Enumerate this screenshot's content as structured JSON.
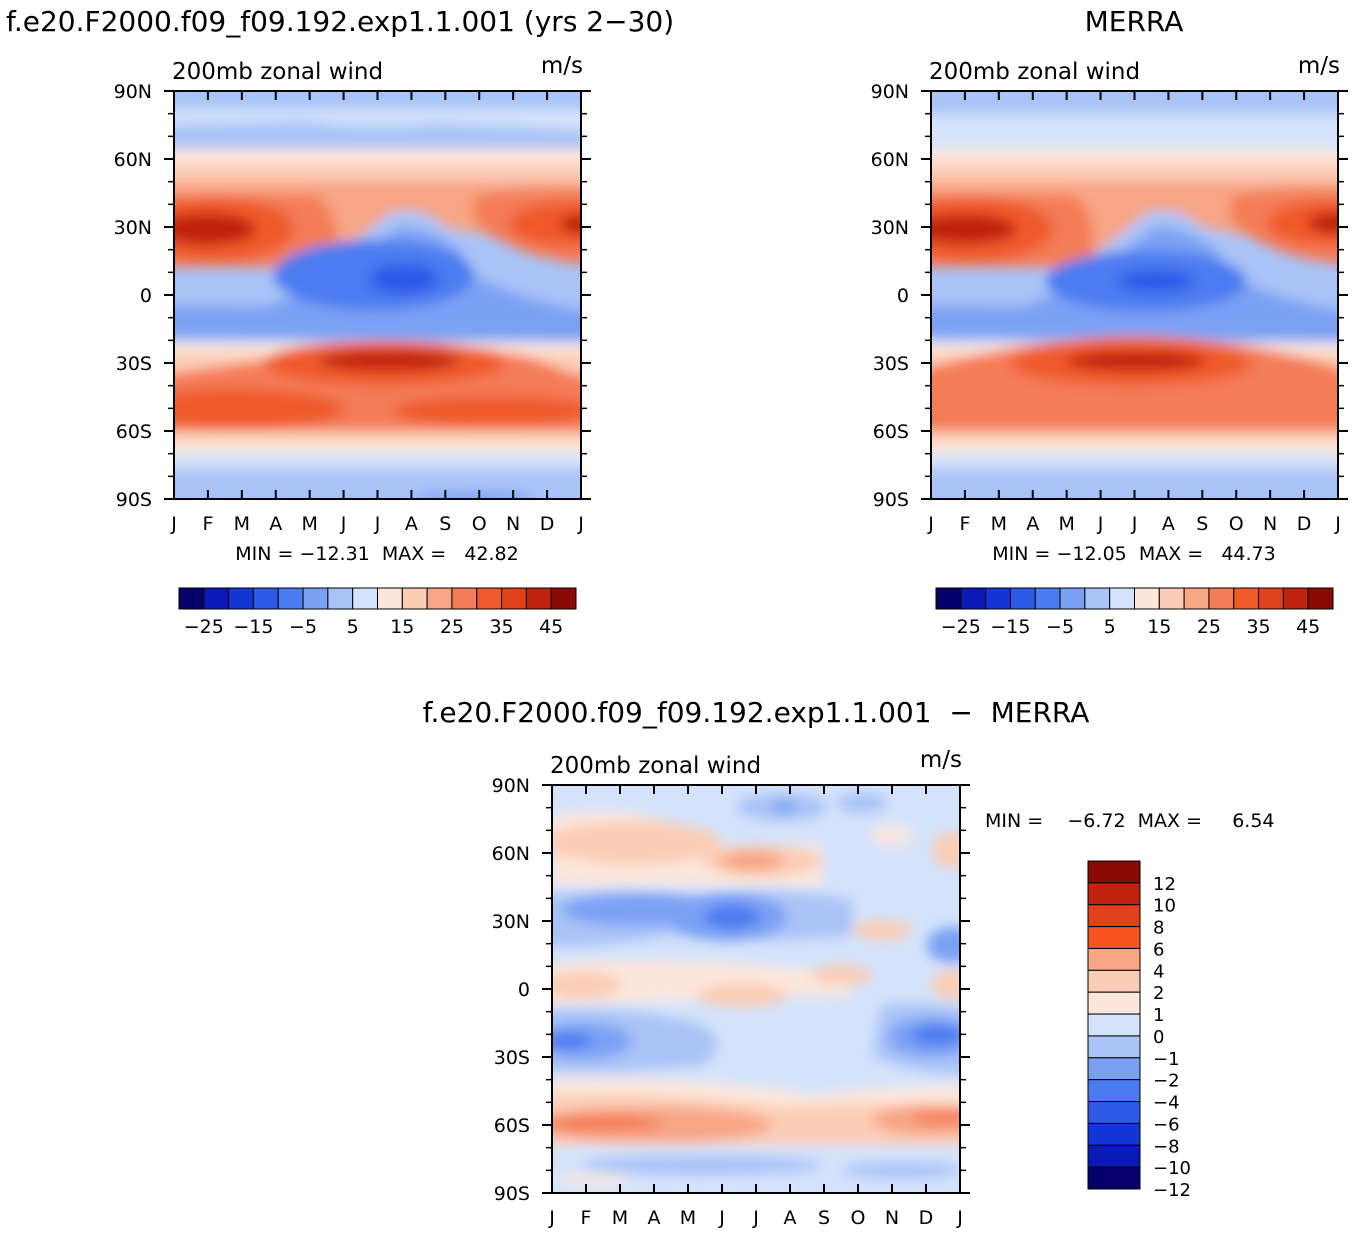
{
  "chart_data": [
    {
      "type": "heatmap",
      "title": "f.e20.F2000.f09_f09.192.exp1.1.001 (yrs 2−30)",
      "subtitle_left": "200mb zonal wind",
      "subtitle_right": "m/s",
      "x_ticks": [
        "J",
        "F",
        "M",
        "A",
        "M",
        "J",
        "J",
        "A",
        "S",
        "O",
        "N",
        "D",
        "J"
      ],
      "y_ticks": [
        "90N",
        "60N",
        "30N",
        "0",
        "30S",
        "60S",
        "90S"
      ],
      "min_max_text": "MIN = −12.31  MAX =   42.82",
      "min": -12.31,
      "max": 42.82,
      "colorbar_labels": [
        "−25",
        "−15",
        "−5",
        "5",
        "15",
        "25",
        "35",
        "45"
      ],
      "colorbar_levels": [
        -30,
        -25,
        -20,
        -15,
        -10,
        -5,
        0,
        5,
        10,
        15,
        20,
        25,
        30,
        35,
        40,
        45
      ],
      "colorbar_colors": [
        "#08006b",
        "#0a1ab8",
        "#1336d6",
        "#2f5ae8",
        "#4b7bf0",
        "#7aa0f4",
        "#a9c3f7",
        "#d4e3fb",
        "#fde7dc",
        "#fbcdb6",
        "#f7a585",
        "#f47c56",
        "#ef5a2b",
        "#e0401a",
        "#c02410",
        "#8b0a06"
      ]
    },
    {
      "type": "heatmap",
      "title": "MERRA",
      "subtitle_left": "200mb zonal wind",
      "subtitle_right": "m/s",
      "x_ticks": [
        "J",
        "F",
        "M",
        "A",
        "M",
        "J",
        "J",
        "A",
        "S",
        "O",
        "N",
        "D",
        "J"
      ],
      "y_ticks": [
        "90N",
        "60N",
        "30N",
        "0",
        "30S",
        "60S",
        "90S"
      ],
      "min_max_text": "MIN = −12.05  MAX =   44.73",
      "min": -12.05,
      "max": 44.73,
      "colorbar_labels": [
        "−25",
        "−15",
        "−5",
        "5",
        "15",
        "25",
        "35",
        "45"
      ]
    },
    {
      "type": "heatmap",
      "title": "f.e20.F2000.f09_f09.192.exp1.1.001  −  MERRA",
      "subtitle_left": "200mb zonal wind",
      "subtitle_right": "m/s",
      "x_ticks": [
        "J",
        "F",
        "M",
        "A",
        "M",
        "J",
        "J",
        "A",
        "S",
        "O",
        "N",
        "D",
        "J"
      ],
      "y_ticks": [
        "90N",
        "60N",
        "30N",
        "0",
        "30S",
        "60S",
        "90S"
      ],
      "min_max_text": "MIN =    −6.72  MAX =     6.54",
      "min": -6.72,
      "max": 6.54,
      "colorbar_labels": [
        "12",
        "10",
        "8",
        "6",
        "4",
        "2",
        "1",
        "0",
        "−1",
        "−2",
        "−4",
        "−6",
        "−8",
        "−10",
        "−12"
      ],
      "colorbar_colors": [
        "#8b0a06",
        "#c02410",
        "#e0401a",
        "#f7541f",
        "#f7a585",
        "#fbcdb6",
        "#fde7dc",
        "#d4e3fb",
        "#a9c3f7",
        "#7aa0f4",
        "#4b7bf0",
        "#2f5ae8",
        "#1336d6",
        "#0a1ab8",
        "#08006b"
      ]
    }
  ]
}
